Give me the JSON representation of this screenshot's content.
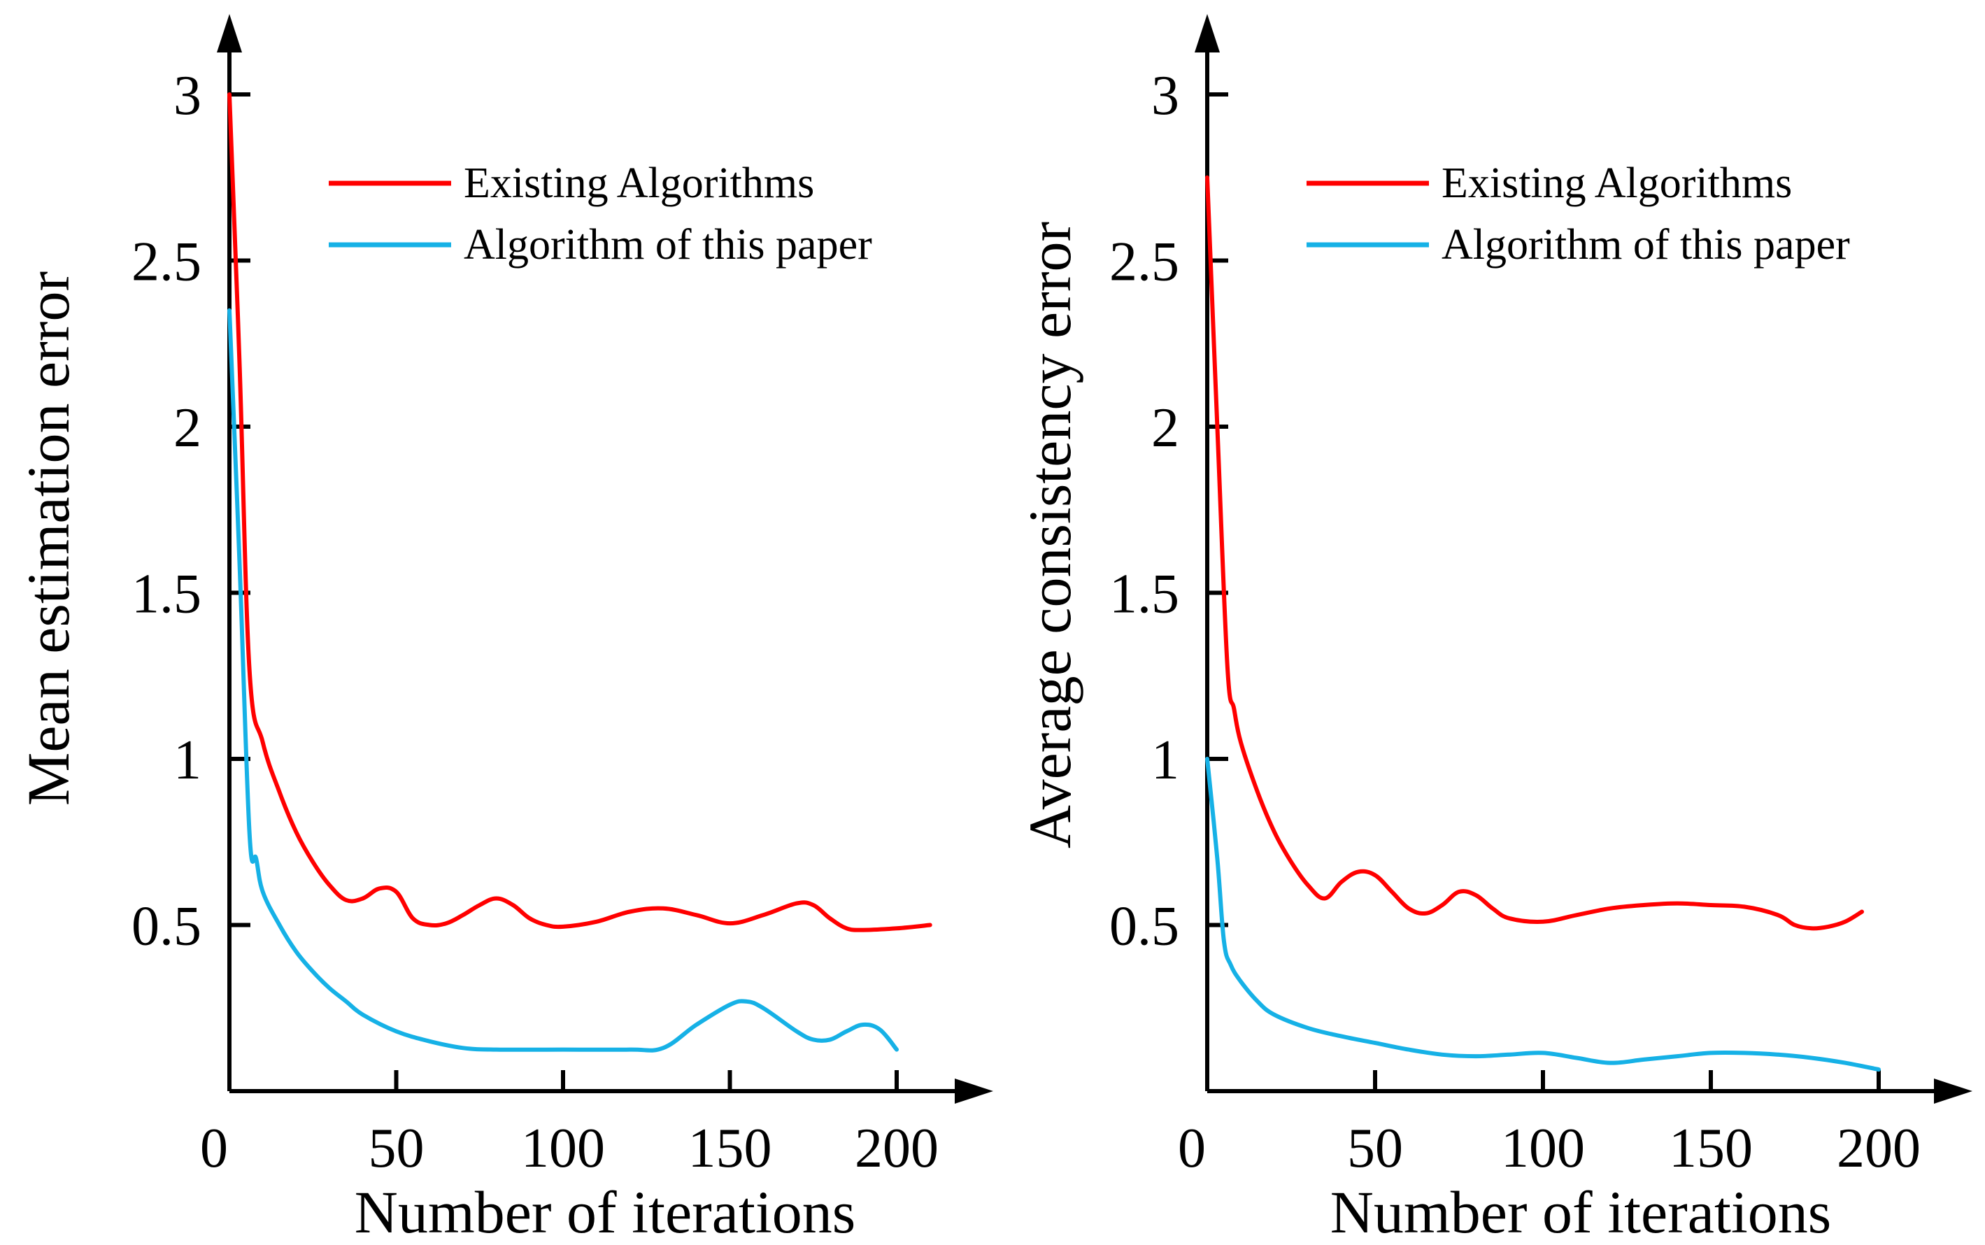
{
  "chart_data": [
    {
      "type": "line",
      "title": "",
      "xlabel": "Number of iterations",
      "ylabel": "Mean estimation error",
      "xlim": [
        0,
        220
      ],
      "ylim": [
        0,
        3.3
      ],
      "xticks": [
        0,
        50,
        100,
        150,
        200
      ],
      "xtick_labels": [
        "0",
        "50",
        "100",
        "150",
        "200"
      ],
      "yticks": [
        0.5,
        1,
        1.5,
        2,
        2.5,
        3
      ],
      "ytick_labels": [
        "0.5",
        "1",
        "1.5",
        "2",
        "2.5",
        "3"
      ],
      "legend_position": "top-right",
      "series": [
        {
          "name": "Existing Algorithms",
          "color": "#ff0000",
          "x": [
            0,
            3,
            6,
            10,
            15,
            20,
            25,
            30,
            35,
            40,
            45,
            50,
            55,
            60,
            65,
            70,
            75,
            80,
            85,
            90,
            95,
            100,
            110,
            120,
            130,
            140,
            150,
            160,
            170,
            175,
            180,
            185,
            190,
            200,
            210
          ],
          "y": [
            3.0,
            2.2,
            1.27,
            1.05,
            0.9,
            0.78,
            0.69,
            0.62,
            0.575,
            0.58,
            0.61,
            0.6,
            0.52,
            0.5,
            0.505,
            0.53,
            0.56,
            0.58,
            0.56,
            0.52,
            0.5,
            0.495,
            0.51,
            0.54,
            0.55,
            0.53,
            0.505,
            0.53,
            0.565,
            0.56,
            0.52,
            0.49,
            0.485,
            0.49,
            0.5
          ]
        },
        {
          "name": "Algorithm of this paper",
          "color": "#16b1e6",
          "x": [
            0,
            3,
            6,
            8,
            10,
            15,
            20,
            25,
            30,
            35,
            40,
            50,
            60,
            70,
            80,
            100,
            120,
            130,
            140,
            150,
            155,
            160,
            170,
            175,
            180,
            185,
            190,
            195,
            200
          ],
          "y": [
            2.35,
            1.6,
            0.78,
            0.7,
            0.6,
            0.5,
            0.42,
            0.36,
            0.31,
            0.27,
            0.23,
            0.18,
            0.15,
            0.13,
            0.125,
            0.125,
            0.125,
            0.13,
            0.2,
            0.26,
            0.27,
            0.25,
            0.18,
            0.155,
            0.155,
            0.18,
            0.2,
            0.185,
            0.125
          ]
        }
      ]
    },
    {
      "type": "line",
      "title": "",
      "xlabel": "Number of iterations",
      "ylabel": "Average consistency error",
      "xlim": [
        0,
        220
      ],
      "ylim": [
        0,
        3.3
      ],
      "xticks": [
        0,
        50,
        100,
        150,
        200
      ],
      "xtick_labels": [
        "0",
        "50",
        "100",
        "150",
        "200"
      ],
      "yticks": [
        0.5,
        1,
        1.5,
        2,
        2.5,
        3
      ],
      "ytick_labels": [
        "0.5",
        "1",
        "1.5",
        "2",
        "2.5",
        "3"
      ],
      "legend_position": "top-right",
      "series": [
        {
          "name": "Existing Algorithms",
          "color": "#ff0000",
          "x": [
            0,
            3,
            6,
            8,
            10,
            15,
            20,
            25,
            30,
            35,
            40,
            45,
            50,
            55,
            60,
            65,
            70,
            75,
            80,
            85,
            90,
            100,
            110,
            120,
            130,
            140,
            150,
            160,
            170,
            175,
            180,
            185,
            190,
            195
          ],
          "y": [
            2.75,
            2.0,
            1.28,
            1.15,
            1.05,
            0.9,
            0.78,
            0.69,
            0.62,
            0.58,
            0.63,
            0.66,
            0.65,
            0.6,
            0.55,
            0.535,
            0.56,
            0.6,
            0.59,
            0.55,
            0.52,
            0.51,
            0.53,
            0.55,
            0.56,
            0.565,
            0.56,
            0.555,
            0.53,
            0.5,
            0.49,
            0.495,
            0.51,
            0.54
          ]
        },
        {
          "name": "Algorithm of this paper",
          "color": "#16b1e6",
          "x": [
            0,
            3,
            5,
            7,
            10,
            15,
            20,
            30,
            40,
            50,
            60,
            70,
            80,
            90,
            100,
            110,
            120,
            130,
            140,
            150,
            160,
            170,
            180,
            190,
            200
          ],
          "y": [
            1.0,
            0.7,
            0.45,
            0.38,
            0.33,
            0.27,
            0.23,
            0.19,
            0.165,
            0.145,
            0.125,
            0.11,
            0.105,
            0.11,
            0.115,
            0.1,
            0.085,
            0.095,
            0.105,
            0.115,
            0.115,
            0.11,
            0.1,
            0.085,
            0.065
          ]
        }
      ]
    }
  ]
}
